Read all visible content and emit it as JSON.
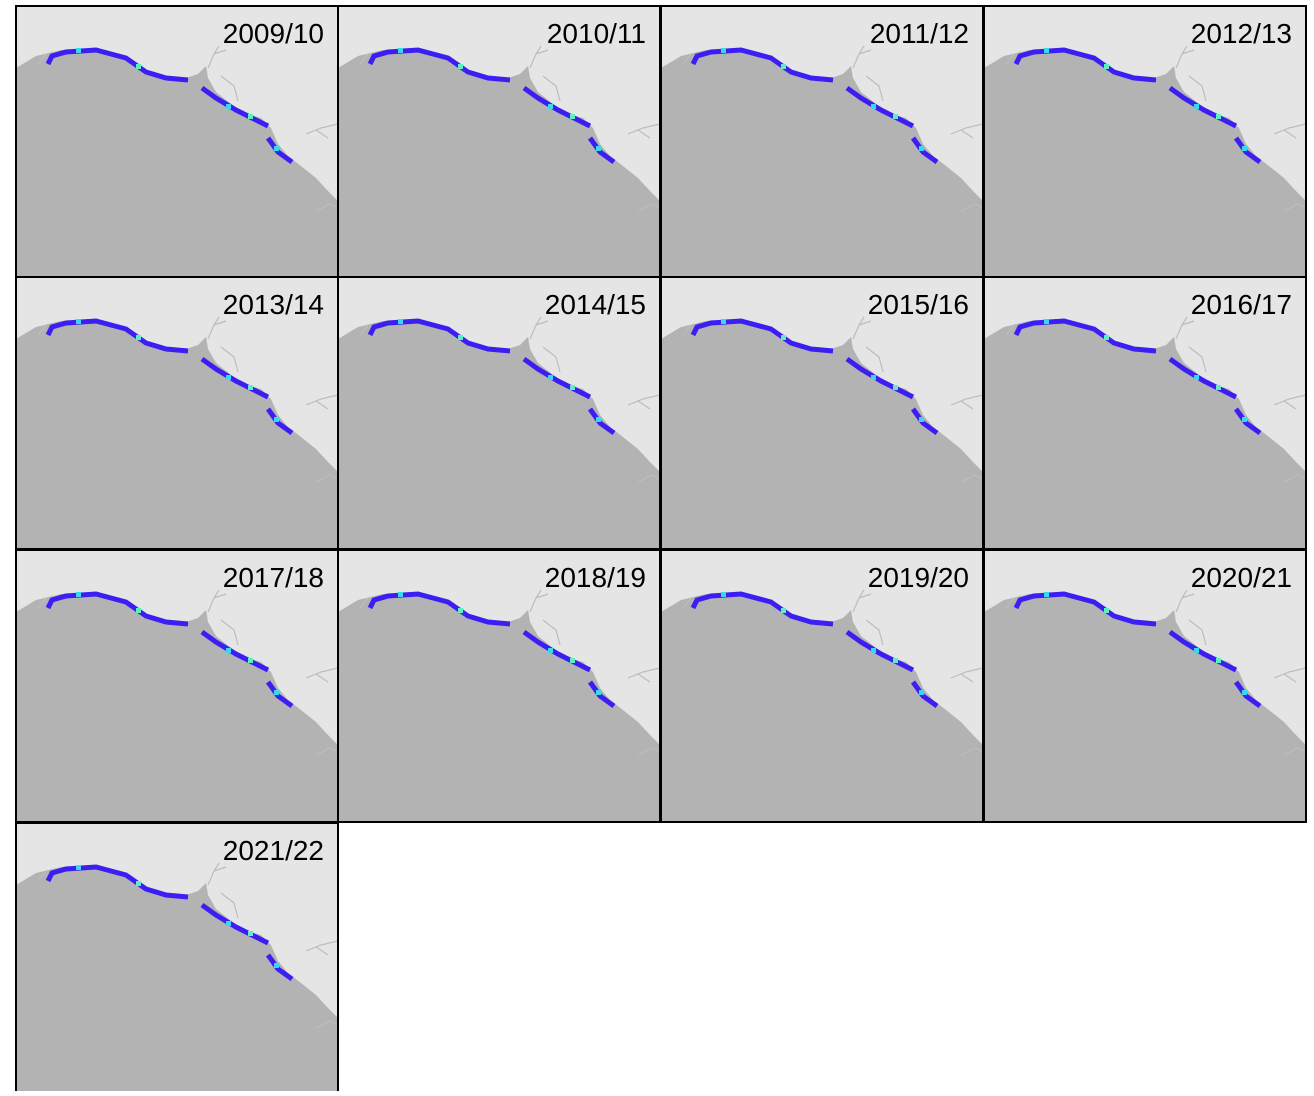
{
  "panels": [
    "2009/10",
    "2010/11",
    "2011/12",
    "2012/13",
    "2013/14",
    "2014/15",
    "2015/16",
    "2016/17",
    "2017/18",
    "2018/19",
    "2019/20",
    "2020/21",
    "2021/22"
  ]
}
